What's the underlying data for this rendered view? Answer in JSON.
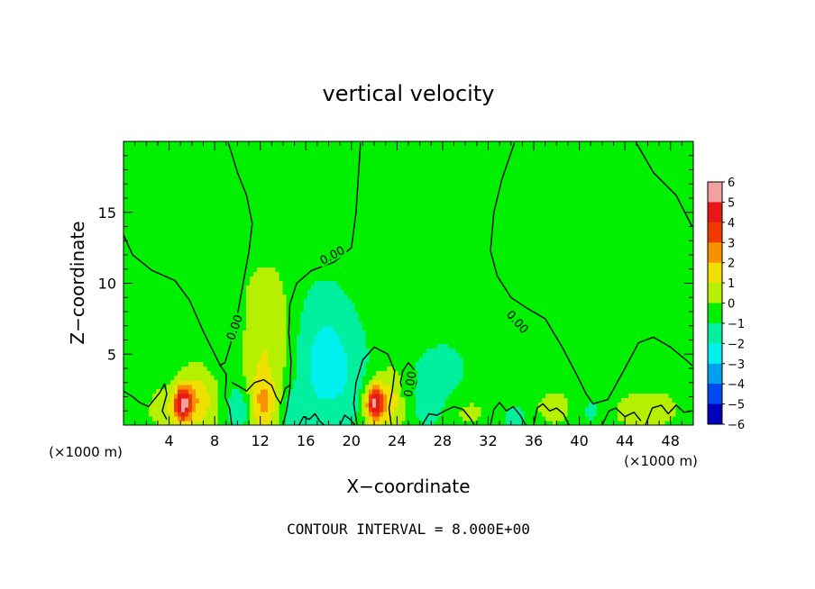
{
  "chart_data": {
    "type": "heatmap",
    "title": "vertical velocity",
    "xlabel": "X−coordinate",
    "ylabel": "Z−coordinate",
    "x_unit": "(×1000 m)",
    "x_unit_right": "(×1000 m)",
    "xlim": [
      0,
      50
    ],
    "ylim": [
      0,
      20
    ],
    "x_ticks": [
      {
        "value": 4,
        "label": "4"
      },
      {
        "value": 8,
        "label": "8"
      },
      {
        "value": 12,
        "label": "12"
      },
      {
        "value": 16,
        "label": "16"
      },
      {
        "value": 20,
        "label": "20"
      },
      {
        "value": 24,
        "label": "24"
      },
      {
        "value": 28,
        "label": "28"
      },
      {
        "value": 32,
        "label": "32"
      },
      {
        "value": 36,
        "label": "36"
      },
      {
        "value": 40,
        "label": "40"
      },
      {
        "value": 44,
        "label": "44"
      },
      {
        "value": 48,
        "label": "48"
      }
    ],
    "y_ticks": [
      {
        "value": 5,
        "label": "5"
      },
      {
        "value": 10,
        "label": "10"
      },
      {
        "value": 15,
        "label": "15"
      }
    ],
    "colorbar": {
      "levels": [
        6,
        5,
        4,
        3,
        2,
        1,
        0,
        -1,
        -2,
        -3,
        -4,
        -5,
        -6
      ],
      "labels": [
        "6",
        "5",
        "4",
        "3",
        "2",
        "1",
        "0",
        "−1",
        "−2",
        "−3",
        "−4",
        "−5",
        "−6"
      ],
      "colors": [
        "#f2a0a0",
        "#e81818",
        "#f03a00",
        "#f89000",
        "#f0e000",
        "#b4f000",
        "#00f000",
        "#00f0a0",
        "#00f0f0",
        "#00a0f0",
        "#0048f0",
        "#0000b8",
        "#7020a0"
      ]
    },
    "contour_label": "0.00",
    "contour_interval_text": "CONTOUR INTERVAL = 8.000E+00",
    "background_value": 0,
    "features": [
      {
        "x": 5.2,
        "z": 1.5,
        "value": 5,
        "sx": 0.55,
        "sz": 0.9
      },
      {
        "x": 6.6,
        "z": 1.8,
        "value": 2.2,
        "sx": 1.1,
        "sz": 1.6
      },
      {
        "x": 3.6,
        "z": 1.2,
        "value": 1.2,
        "sx": 1.0,
        "sz": 1.0
      },
      {
        "x": 22.0,
        "z": 1.5,
        "value": 5,
        "sx": 0.55,
        "sz": 0.9
      },
      {
        "x": 23.3,
        "z": 1.7,
        "value": 2.0,
        "sx": 1.1,
        "sz": 1.5
      },
      {
        "x": 12.5,
        "z": 6.0,
        "value": 1.6,
        "sx": 1.7,
        "sz": 3.5
      },
      {
        "x": 12.2,
        "z": 1.5,
        "value": 2.2,
        "sx": 0.9,
        "sz": 1.4
      },
      {
        "x": 18.0,
        "z": 3.5,
        "value": -1.8,
        "sx": 2.2,
        "sz": 2.6
      },
      {
        "x": 17.5,
        "z": 7.5,
        "value": -0.8,
        "sx": 2.0,
        "sz": 2.5
      },
      {
        "x": 9.0,
        "z": 6.5,
        "value": -0.6,
        "sx": 1.5,
        "sz": 2.2
      },
      {
        "x": 10.2,
        "z": 1.2,
        "value": -1.5,
        "sx": 0.8,
        "sz": 1.2
      },
      {
        "x": 14.8,
        "z": 1.0,
        "value": -1.2,
        "sx": 0.7,
        "sz": 1.0
      },
      {
        "x": 26.8,
        "z": 2.3,
        "value": -1.2,
        "sx": 1.3,
        "sz": 1.8
      },
      {
        "x": 29.0,
        "z": 4.2,
        "value": -0.5,
        "sx": 1.8,
        "sz": 2.2
      },
      {
        "x": 30.0,
        "z": 1.0,
        "value": 0.8,
        "sx": 1.6,
        "sz": 0.9
      },
      {
        "x": 34.3,
        "z": 0.5,
        "value": -1.5,
        "sx": 0.6,
        "sz": 0.6
      },
      {
        "x": 38.0,
        "z": 1.2,
        "value": 0.9,
        "sx": 1.4,
        "sz": 1.0
      },
      {
        "x": 41.0,
        "z": 1.0,
        "value": -0.7,
        "sx": 1.2,
        "sz": 1.0
      },
      {
        "x": 44.5,
        "z": 1.0,
        "value": 0.8,
        "sx": 1.4,
        "sz": 0.9
      },
      {
        "x": 47.0,
        "z": 1.2,
        "value": 0.8,
        "sx": 1.5,
        "sz": 1.0
      }
    ],
    "contours": [
      [
        [
          0,
          13.4
        ],
        [
          0.8,
          12.0
        ],
        [
          2.5,
          10.9
        ],
        [
          4.5,
          10.2
        ],
        [
          5.8,
          8.8
        ],
        [
          7.0,
          6.6
        ],
        [
          8.0,
          5.0
        ],
        [
          8.5,
          4.2
        ],
        [
          9.0,
          3.6
        ],
        [
          9.0,
          3.0
        ],
        [
          8.9,
          2.0
        ],
        [
          9.3,
          1.2
        ],
        [
          9.5,
          0
        ]
      ],
      [
        [
          9.2,
          19.9
        ],
        [
          10.0,
          17.8
        ],
        [
          10.8,
          16.2
        ],
        [
          11.3,
          14.2
        ],
        [
          11.0,
          12.2
        ],
        [
          10.5,
          10.0
        ],
        [
          10.0,
          7.8
        ],
        [
          9.5,
          6.0
        ],
        [
          8.9,
          4.4
        ],
        [
          8.4,
          4.2
        ]
      ],
      [
        [
          20.8,
          19.9
        ],
        [
          20.4,
          15.0
        ],
        [
          20.0,
          12.5
        ],
        [
          18.5,
          11.5
        ],
        [
          16.5,
          10.9
        ],
        [
          15.2,
          10.0
        ],
        [
          14.6,
          8.5
        ],
        [
          14.5,
          6.5
        ],
        [
          14.7,
          4.5
        ],
        [
          14.6,
          2.5
        ],
        [
          14.3,
          1.0
        ],
        [
          14.0,
          0
        ]
      ],
      [
        [
          34.3,
          19.9
        ],
        [
          33.2,
          17.3
        ],
        [
          32.5,
          15.0
        ],
        [
          32.2,
          12.3
        ],
        [
          32.8,
          10.5
        ],
        [
          34.0,
          9.0
        ],
        [
          35.5,
          8.2
        ],
        [
          37.0,
          7.5
        ],
        [
          38.5,
          5.5
        ],
        [
          39.8,
          3.5
        ],
        [
          40.6,
          2.2
        ],
        [
          41.2,
          1.5
        ],
        [
          42.5,
          1.8
        ],
        [
          44.0,
          4.0
        ],
        [
          45.2,
          5.8
        ],
        [
          46.5,
          6.2
        ],
        [
          48.0,
          5.5
        ],
        [
          49.5,
          4.5
        ],
        [
          49.9,
          4.2
        ]
      ],
      [
        [
          45.0,
          19.9
        ],
        [
          46.5,
          17.8
        ],
        [
          48.5,
          16.2
        ],
        [
          49.9,
          14.0
        ]
      ],
      [
        [
          20.5,
          0
        ],
        [
          20.2,
          1.5
        ],
        [
          20.4,
          3.0
        ],
        [
          21.0,
          4.6
        ],
        [
          22.0,
          5.5
        ],
        [
          23.2,
          5.0
        ],
        [
          23.8,
          3.8
        ],
        [
          23.6,
          2.5
        ],
        [
          23.3,
          1.2
        ],
        [
          23.5,
          0
        ]
      ],
      [
        [
          25.0,
          4.4
        ],
        [
          24.5,
          3.8
        ],
        [
          24.3,
          3.0
        ],
        [
          24.6,
          2.2
        ],
        [
          25.4,
          2.2
        ],
        [
          25.7,
          3.0
        ],
        [
          25.6,
          3.8
        ],
        [
          25.0,
          4.4
        ]
      ],
      [
        [
          9.5,
          3.0
        ],
        [
          10.2,
          2.7
        ],
        [
          10.8,
          2.4
        ],
        [
          11.5,
          3.0
        ],
        [
          12.3,
          3.2
        ],
        [
          13.0,
          2.8
        ],
        [
          13.4,
          2.0
        ],
        [
          13.8,
          1.5
        ],
        [
          14.2,
          2.6
        ],
        [
          14.6,
          2.8
        ]
      ],
      [
        [
          0,
          2.4
        ],
        [
          0.8,
          2.0
        ],
        [
          1.4,
          1.6
        ],
        [
          2.2,
          1.3
        ],
        [
          2.7,
          1.8
        ],
        [
          3.2,
          2.3
        ],
        [
          3.6,
          2.9
        ],
        [
          3.8,
          2.2
        ],
        [
          3.4,
          1.0
        ],
        [
          3.8,
          0.4
        ]
      ],
      [
        [
          26.2,
          0
        ],
        [
          26.8,
          0.8
        ],
        [
          27.5,
          0.7
        ],
        [
          28.2,
          1.0
        ],
        [
          29.0,
          1.3
        ],
        [
          29.8,
          1.1
        ],
        [
          30.4,
          0.5
        ],
        [
          30.8,
          0
        ]
      ],
      [
        [
          32.2,
          0
        ],
        [
          32.5,
          1.1
        ],
        [
          33.0,
          1.6
        ],
        [
          33.6,
          1.0
        ],
        [
          34.2,
          1.3
        ],
        [
          34.8,
          0.7
        ],
        [
          35.3,
          0
        ]
      ],
      [
        [
          36.0,
          0
        ],
        [
          36.3,
          1.2
        ],
        [
          36.8,
          1.5
        ],
        [
          37.4,
          1.0
        ],
        [
          38.0,
          1.2
        ],
        [
          38.6,
          0.8
        ],
        [
          39.1,
          0
        ]
      ],
      [
        [
          42.0,
          0
        ],
        [
          42.6,
          1.0
        ],
        [
          43.2,
          1.2
        ],
        [
          44.0,
          0.6
        ],
        [
          44.8,
          0.9
        ],
        [
          45.4,
          0.3
        ]
      ],
      [
        [
          45.8,
          0
        ],
        [
          46.4,
          1.2
        ],
        [
          47.2,
          1.4
        ],
        [
          47.8,
          0.8
        ],
        [
          48.5,
          1.4
        ],
        [
          49.2,
          0.9
        ],
        [
          49.9,
          1.0
        ]
      ],
      [
        [
          15.4,
          0
        ],
        [
          15.8,
          0.6
        ],
        [
          16.3,
          0.4
        ],
        [
          16.8,
          0.8
        ],
        [
          17.2,
          0.3
        ],
        [
          17.6,
          0
        ]
      ],
      [
        [
          19.0,
          0
        ],
        [
          19.4,
          0.7
        ],
        [
          19.9,
          0.4
        ],
        [
          20.3,
          0
        ]
      ]
    ],
    "contour_labels": [
      {
        "x": 18.3,
        "z": 12.0,
        "angle": -28
      },
      {
        "x": 9.7,
        "z": 6.9,
        "angle": -70
      },
      {
        "x": 34.6,
        "z": 7.3,
        "angle": 48
      },
      {
        "x": 25.1,
        "z": 2.9,
        "angle": -80
      }
    ],
    "grid": false,
    "legend_placement": "right colorbar"
  }
}
